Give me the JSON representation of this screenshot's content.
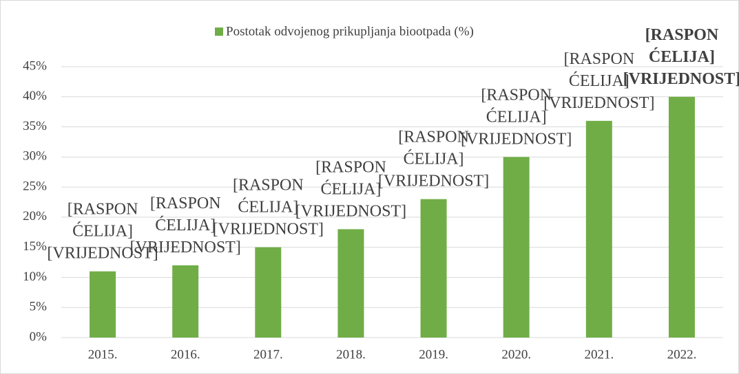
{
  "chart_data": {
    "type": "bar",
    "categories": [
      "2015.",
      "2016.",
      "2017.",
      "2018.",
      "2019.",
      "2020.",
      "2021.",
      "2022."
    ],
    "series": [
      {
        "name": "Postotak odvojenog prikupljanja biootpada (%)",
        "color": "#70ad47",
        "values": [
          11,
          12,
          15,
          18,
          23,
          30,
          36,
          40
        ]
      }
    ],
    "data_labels": [
      {
        "text": "[RASPON ĆELIJA] [VRIJEDNOST]",
        "bold": false
      },
      {
        "text": "[RASPON ĆELIJA] [VRIJEDNOST]",
        "bold": false
      },
      {
        "text": "[RASPON ĆELIJA] [VRIJEDNOST]",
        "bold": false
      },
      {
        "text": "[RASPON ĆELIJA] [VRIJEDNOST]",
        "bold": false
      },
      {
        "text": "[RASPON ĆELIJA] [VRIJEDNOST]",
        "bold": false
      },
      {
        "text": "[RASPON ĆELIJA] [VRIJEDNOST]",
        "bold": false
      },
      {
        "text": "[RASPON ĆELIJA] [VRIJEDNOST]",
        "bold": false
      },
      {
        "text": "[RASPON ĆELIJA] [VRIJEDNOST]",
        "bold": true
      }
    ],
    "ylim": [
      0,
      45
    ],
    "yticks": [
      {
        "value": 0,
        "label": "0%"
      },
      {
        "value": 5,
        "label": "5%"
      },
      {
        "value": 10,
        "label": "10%"
      },
      {
        "value": 15,
        "label": "15%"
      },
      {
        "value": 20,
        "label": "20%"
      },
      {
        "value": 25,
        "label": "25%"
      },
      {
        "value": 30,
        "label": "30%"
      },
      {
        "value": 35,
        "label": "35%"
      },
      {
        "value": 40,
        "label": "40%"
      },
      {
        "value": 45,
        "label": "45%"
      }
    ],
    "grid": true,
    "legend": "top"
  }
}
